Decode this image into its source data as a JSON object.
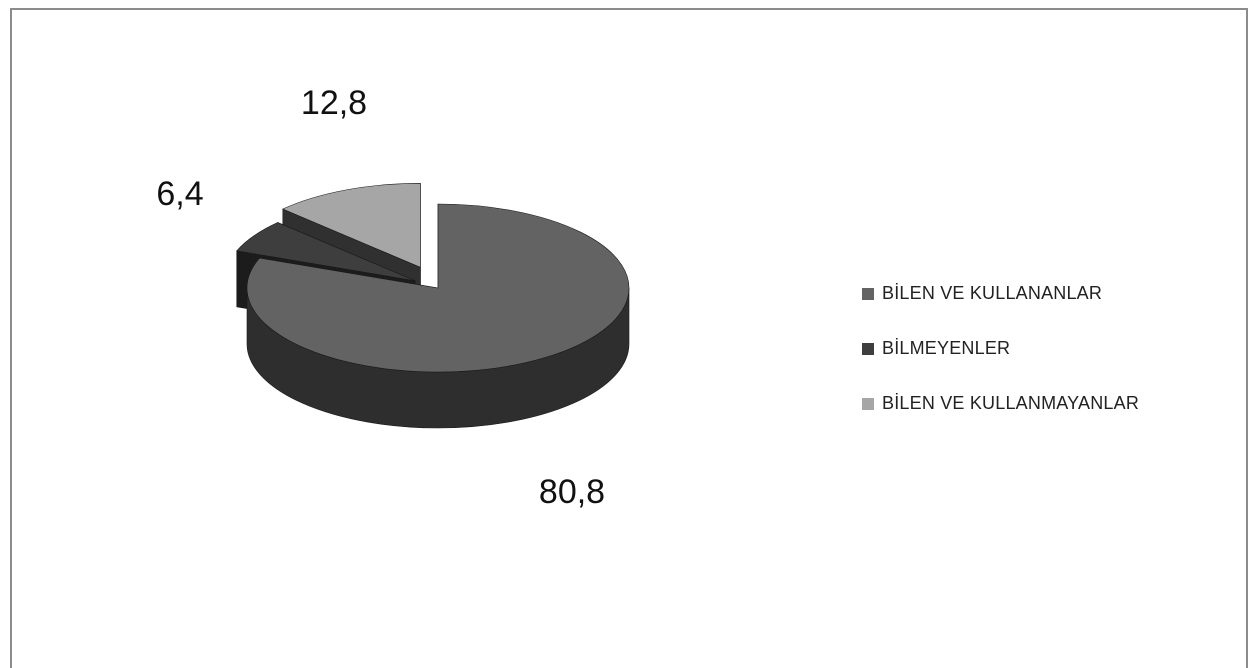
{
  "chart_data": {
    "type": "pie",
    "variant": "3d-exploded",
    "categories": [
      "BİLEN VE KULLANANLAR",
      "BİLMEYENLER",
      "BİLEN VE KULLANMAYANLAR"
    ],
    "values": [
      80.8,
      6.4,
      12.8
    ],
    "data_labels": [
      "80,8",
      "6,4",
      "12,8"
    ],
    "colors": [
      "#636363",
      "#3e3e3e",
      "#a6a6a6"
    ],
    "side_colors": [
      "#2e2e2e",
      "#1c1c1c",
      "#303030"
    ],
    "legend_position": "right",
    "title": ""
  }
}
